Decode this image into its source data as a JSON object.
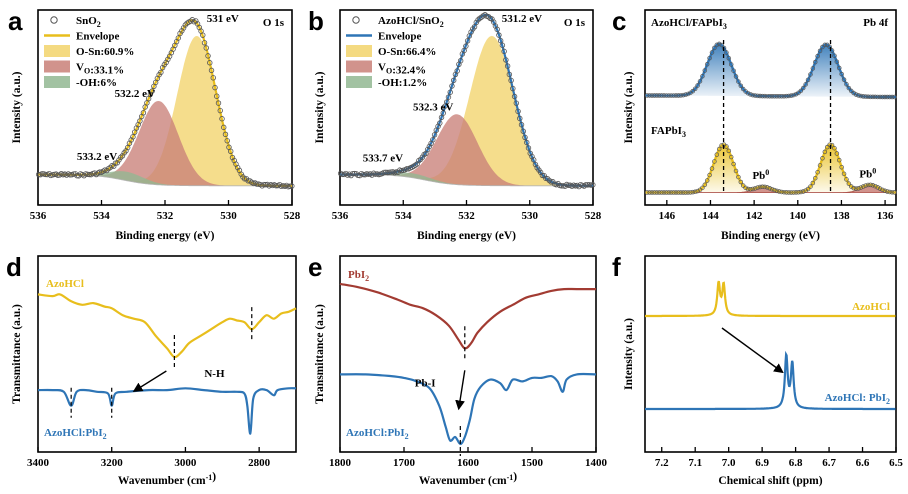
{
  "chart_data": [
    {
      "panel": "a",
      "type": "line",
      "corner_label": "O 1s",
      "xlabel": "Binding energy (eV)",
      "ylabel": "Intensity (a.u.)",
      "xlim": [
        536,
        528
      ],
      "xticks": [
        "536",
        "534",
        "532",
        "530",
        "528"
      ],
      "grid": false,
      "legend_position": "top-left",
      "legend": [
        {
          "name": "SnO2",
          "kind": "marker",
          "color": "#555555"
        },
        {
          "name": "Envelope",
          "kind": "line",
          "color": "#E8BE1C"
        },
        {
          "name": "O-Sn:60.9%",
          "kind": "box",
          "color": "#F2D46B"
        },
        {
          "name": "VO:33.1%",
          "kind": "box",
          "color": "#C98078"
        },
        {
          "name": "-OH:6%",
          "kind": "box",
          "color": "#92B792"
        }
      ],
      "envelope_color": "#E8BE1C",
      "peaks": [
        {
          "center": 531.0,
          "height": 1.0,
          "width": 0.62,
          "color": "#F2D46B",
          "label": "531 eV"
        },
        {
          "center": 532.2,
          "height": 0.56,
          "width": 0.62,
          "color": "#C98078",
          "label": "532.2 eV"
        },
        {
          "center": 533.2,
          "height": 0.06,
          "width": 0.55,
          "color": "#92B792",
          "label": "533.2 eV"
        }
      ]
    },
    {
      "panel": "b",
      "type": "line",
      "corner_label": "O 1s",
      "xlabel": "Binding energy (eV)",
      "ylabel": "Intensity (a.u.)",
      "xlim": [
        536,
        528
      ],
      "xticks": [
        "536",
        "534",
        "532",
        "530",
        "528"
      ],
      "grid": false,
      "legend_position": "top-left",
      "legend": [
        {
          "name": "AzoHCl/SnO2",
          "kind": "marker",
          "color": "#555555"
        },
        {
          "name": "Envelope",
          "kind": "line",
          "color": "#2E75B6"
        },
        {
          "name": "O-Sn:66.4%",
          "kind": "box",
          "color": "#F2D46B"
        },
        {
          "name": "VO:32.4%",
          "kind": "box",
          "color": "#C98078"
        },
        {
          "name": "-OH:1.2%",
          "kind": "box",
          "color": "#92B792"
        }
      ],
      "envelope_color": "#2E75B6",
      "peaks": [
        {
          "center": 531.2,
          "height": 1.0,
          "width": 0.7,
          "color": "#F2D46B",
          "label": "531.2 eV"
        },
        {
          "center": 532.3,
          "height": 0.47,
          "width": 0.65,
          "color": "#C98078",
          "label": "532.3 eV"
        },
        {
          "center": 533.7,
          "height": 0.03,
          "width": 0.6,
          "color": "#92B792",
          "label": "533.7 eV"
        }
      ]
    },
    {
      "panel": "c",
      "type": "line",
      "corner_label": "Pb 4f",
      "xlabel": "Binding energy (eV)",
      "ylabel": "Intensity (a.u.)",
      "xlim": [
        147,
        135.5
      ],
      "xticks": [
        "146",
        "144",
        "142",
        "140",
        "138",
        "136"
      ],
      "grid": false,
      "reference_lines": [
        143.4,
        138.5
      ],
      "series": [
        {
          "name": "AzoHCl/FAPbI3",
          "color": "#2E75B6",
          "peaks": [
            {
              "center": 143.6,
              "height": 1.0,
              "width": 0.55
            },
            {
              "center": 138.7,
              "height": 1.0,
              "width": 0.55
            }
          ]
        },
        {
          "name": "FAPbI3",
          "color": "#E8BE1C",
          "peaks": [
            {
              "center": 143.4,
              "height": 1.0,
              "width": 0.45
            },
            {
              "center": 138.5,
              "height": 1.0,
              "width": 0.45
            }
          ],
          "minor_peaks": [
            {
              "center": 141.6,
              "height": 0.12,
              "width": 0.4,
              "label": "Pb0"
            },
            {
              "center": 136.7,
              "height": 0.16,
              "width": 0.4,
              "label": "Pb0"
            }
          ]
        }
      ]
    },
    {
      "panel": "d",
      "type": "line",
      "xlabel": "Wavenumber (cm-1)",
      "ylabel": "Transmittance (a.u.)",
      "xlim": [
        3400,
        2700
      ],
      "xticks": [
        "3400",
        "3200",
        "3000",
        "2800"
      ],
      "grid": false,
      "annotation": "N-H",
      "reference_lines_top": [
        3030,
        2820
      ],
      "reference_lines_bottom": [
        3310,
        3200
      ],
      "series": [
        {
          "name": "AzoHCl",
          "color": "#E8BE1C",
          "points": [
            [
              3400,
              0.86
            ],
            [
              3360,
              0.85
            ],
            [
              3340,
              0.86
            ],
            [
              3310,
              0.82
            ],
            [
              3280,
              0.8
            ],
            [
              3250,
              0.81
            ],
            [
              3220,
              0.79
            ],
            [
              3200,
              0.78
            ],
            [
              3170,
              0.74
            ],
            [
              3140,
              0.72
            ],
            [
              3110,
              0.7
            ],
            [
              3080,
              0.62
            ],
            [
              3050,
              0.55
            ],
            [
              3030,
              0.5
            ],
            [
              3010,
              0.53
            ],
            [
              2990,
              0.58
            ],
            [
              2960,
              0.62
            ],
            [
              2930,
              0.66
            ],
            [
              2900,
              0.7
            ],
            [
              2880,
              0.72
            ],
            [
              2860,
              0.71
            ],
            [
              2840,
              0.7
            ],
            [
              2820,
              0.66
            ],
            [
              2800,
              0.7
            ],
            [
              2780,
              0.74
            ],
            [
              2760,
              0.72
            ],
            [
              2740,
              0.75
            ],
            [
              2720,
              0.76
            ],
            [
              2700,
              0.78
            ]
          ]
        },
        {
          "name": "AzoHCl:PbI2",
          "color": "#2E75B6",
          "points": [
            [
              3400,
              0.31
            ],
            [
              3360,
              0.31
            ],
            [
              3330,
              0.3
            ],
            [
              3310,
              0.22
            ],
            [
              3295,
              0.3
            ],
            [
              3270,
              0.31
            ],
            [
              3240,
              0.3
            ],
            [
              3210,
              0.29
            ],
            [
              3200,
              0.22
            ],
            [
              3190,
              0.29
            ],
            [
              3160,
              0.3
            ],
            [
              3100,
              0.31
            ],
            [
              3050,
              0.31
            ],
            [
              3000,
              0.32
            ],
            [
              2950,
              0.31
            ],
            [
              2900,
              0.3
            ],
            [
              2860,
              0.3
            ],
            [
              2840,
              0.29
            ],
            [
              2832,
              0.22
            ],
            [
              2824,
              0.06
            ],
            [
              2816,
              0.26
            ],
            [
              2800,
              0.31
            ],
            [
              2780,
              0.31
            ],
            [
              2760,
              0.28
            ],
            [
              2750,
              0.31
            ],
            [
              2720,
              0.32
            ],
            [
              2700,
              0.32
            ]
          ]
        }
      ]
    },
    {
      "panel": "e",
      "type": "line",
      "xlabel": "Wavenumber (cm-1)",
      "ylabel": "Transmittance (a.u.)",
      "xlim": [
        1800,
        1400
      ],
      "xticks": [
        "1800",
        "1700",
        "1600",
        "1500",
        "1400"
      ],
      "grid": false,
      "annotation": "Pb-I",
      "reference_lines_top": [
        1605
      ],
      "reference_lines_bottom": [
        1612
      ],
      "series": [
        {
          "name": "PbI2",
          "color": "#A23B32",
          "points": [
            [
              1800,
              0.92
            ],
            [
              1770,
              0.9
            ],
            [
              1740,
              0.87
            ],
            [
              1710,
              0.83
            ],
            [
              1690,
              0.8
            ],
            [
              1670,
              0.78
            ],
            [
              1650,
              0.74
            ],
            [
              1630,
              0.68
            ],
            [
              1615,
              0.6
            ],
            [
              1605,
              0.55
            ],
            [
              1595,
              0.58
            ],
            [
              1585,
              0.64
            ],
            [
              1570,
              0.7
            ],
            [
              1550,
              0.76
            ],
            [
              1530,
              0.8
            ],
            [
              1510,
              0.84
            ],
            [
              1490,
              0.86
            ],
            [
              1470,
              0.88
            ],
            [
              1450,
              0.89
            ],
            [
              1430,
              0.89
            ],
            [
              1400,
              0.89
            ]
          ]
        },
        {
          "name": "AzoHCl:PbI2",
          "color": "#2E75B6",
          "points": [
            [
              1800,
              0.4
            ],
            [
              1760,
              0.4
            ],
            [
              1720,
              0.39
            ],
            [
              1700,
              0.38
            ],
            [
              1680,
              0.36
            ],
            [
              1660,
              0.32
            ],
            [
              1645,
              0.22
            ],
            [
              1635,
              0.1
            ],
            [
              1628,
              0.02
            ],
            [
              1620,
              0.04
            ],
            [
              1612,
              0.0
            ],
            [
              1605,
              0.04
            ],
            [
              1597,
              0.14
            ],
            [
              1590,
              0.26
            ],
            [
              1580,
              0.33
            ],
            [
              1565,
              0.37
            ],
            [
              1550,
              0.35
            ],
            [
              1540,
              0.31
            ],
            [
              1530,
              0.37
            ],
            [
              1515,
              0.36
            ],
            [
              1500,
              0.38
            ],
            [
              1485,
              0.38
            ],
            [
              1470,
              0.39
            ],
            [
              1460,
              0.36
            ],
            [
              1452,
              0.3
            ],
            [
              1446,
              0.37
            ],
            [
              1430,
              0.4
            ],
            [
              1400,
              0.4
            ]
          ]
        }
      ]
    },
    {
      "panel": "f",
      "type": "line",
      "xlabel": "Chemical shift (ppm)",
      "ylabel": "Intensity (a.u.)",
      "xlim": [
        7.25,
        6.5
      ],
      "xticks": [
        "7.2",
        "7.1",
        "7.0",
        "6.9",
        "6.8",
        "6.7",
        "6.6",
        "6.5"
      ],
      "grid": false,
      "series": [
        {
          "name": "AzoHCl",
          "color": "#E8BE1C",
          "peaks": [
            {
              "center": 7.03,
              "height": 1.0,
              "width": 0.005
            },
            {
              "center": 7.015,
              "height": 0.95,
              "width": 0.005
            }
          ]
        },
        {
          "name": "AzoHCl: PbI2",
          "color": "#2E75B6",
          "peaks": [
            {
              "center": 6.828,
              "height": 1.0,
              "width": 0.005
            },
            {
              "center": 6.81,
              "height": 0.86,
              "width": 0.005
            }
          ]
        }
      ]
    }
  ]
}
